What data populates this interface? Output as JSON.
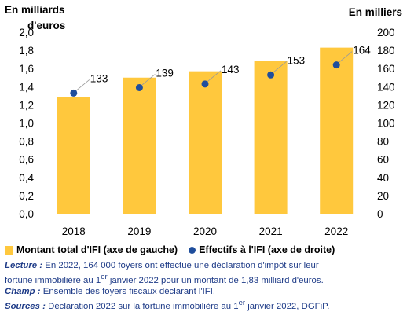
{
  "chart_data": {
    "type": "bar",
    "categories": [
      "2018",
      "2019",
      "2020",
      "2021",
      "2022"
    ],
    "left_axis": {
      "unit_line1": "En milliards",
      "unit_line2": "d'euros",
      "ylim": [
        0,
        2.0
      ],
      "ticks": [
        "0,0",
        "0,2",
        "0,4",
        "0,6",
        "0,8",
        "1,0",
        "1,2",
        "1,4",
        "1,6",
        "1,8",
        "2,0"
      ]
    },
    "right_axis": {
      "unit": "En milliers",
      "ylim": [
        0,
        200
      ],
      "ticks": [
        "0",
        "20",
        "40",
        "60",
        "80",
        "100",
        "120",
        "140",
        "160",
        "180",
        "200"
      ]
    },
    "series": [
      {
        "name": "Montant total d'IFI (axe de gauche)",
        "type": "bar",
        "axis": "left",
        "values": [
          1.29,
          1.5,
          1.57,
          1.68,
          1.83
        ],
        "color": "#FFC83D"
      },
      {
        "name": "Effectifs à l'IFI (axe de droite)",
        "type": "scatter",
        "axis": "right",
        "values": [
          133,
          139,
          143,
          153,
          164
        ],
        "labels": [
          "133",
          "139",
          "143",
          "153",
          "164"
        ],
        "color": "#1F4E9C"
      }
    ],
    "grid": false,
    "legend_position": "bottom"
  },
  "notes": {
    "lecture_label": "Lecture :",
    "lecture_text_1": " En 2022, 164 000 foyers ont effectué une déclaration d'impôt sur leur",
    "lecture_text_2a": "fortune immobilière au 1",
    "lecture_sup": "er",
    "lecture_text_2b": " janvier 2022 pour un montant de 1,83 milliard d'euros.",
    "champ_label": "Champ :",
    "champ_text": " Ensemble des foyers fiscaux déclarant l'IFI.",
    "sources_label": "Sources :",
    "sources_text_a": " Déclaration 2022 sur la fortune immobilière au 1",
    "sources_sup": "er",
    "sources_text_b": " janvier 2022, DGFiP."
  }
}
